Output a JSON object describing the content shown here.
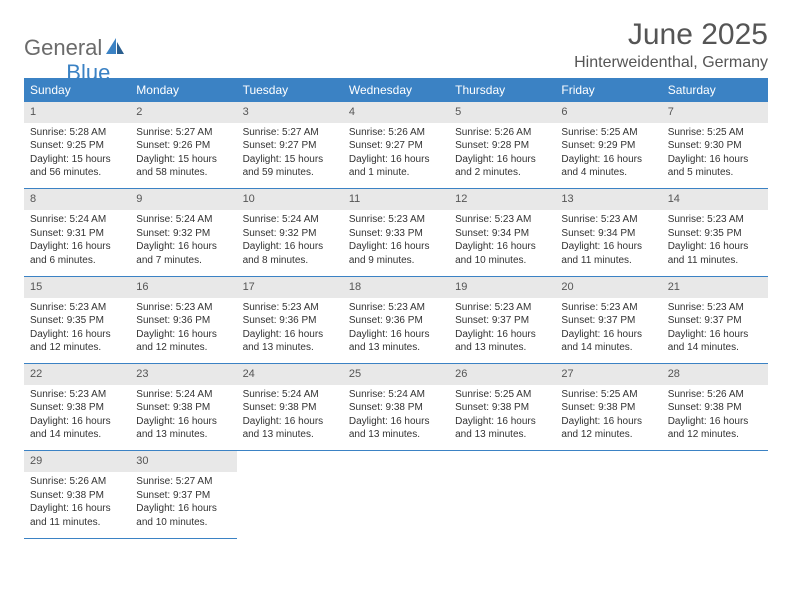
{
  "logo": {
    "word1": "General",
    "word2": "Blue"
  },
  "title": "June 2025",
  "subtitle": "Hinterweidenthal, Germany",
  "day_headers": [
    "Sunday",
    "Monday",
    "Tuesday",
    "Wednesday",
    "Thursday",
    "Friday",
    "Saturday"
  ],
  "colors": {
    "header_bg": "#3b82c4",
    "header_text": "#ffffff",
    "daynum_bg": "#e8e8e8",
    "text": "#333333",
    "rule": "#3b82c4"
  },
  "weeks": [
    {
      "nums": [
        "1",
        "2",
        "3",
        "4",
        "5",
        "6",
        "7"
      ],
      "details": [
        {
          "sunrise": "Sunrise: 5:28 AM",
          "sunset": "Sunset: 9:25 PM",
          "day1": "Daylight: 15 hours",
          "day2": "and 56 minutes."
        },
        {
          "sunrise": "Sunrise: 5:27 AM",
          "sunset": "Sunset: 9:26 PM",
          "day1": "Daylight: 15 hours",
          "day2": "and 58 minutes."
        },
        {
          "sunrise": "Sunrise: 5:27 AM",
          "sunset": "Sunset: 9:27 PM",
          "day1": "Daylight: 15 hours",
          "day2": "and 59 minutes."
        },
        {
          "sunrise": "Sunrise: 5:26 AM",
          "sunset": "Sunset: 9:27 PM",
          "day1": "Daylight: 16 hours",
          "day2": "and 1 minute."
        },
        {
          "sunrise": "Sunrise: 5:26 AM",
          "sunset": "Sunset: 9:28 PM",
          "day1": "Daylight: 16 hours",
          "day2": "and 2 minutes."
        },
        {
          "sunrise": "Sunrise: 5:25 AM",
          "sunset": "Sunset: 9:29 PM",
          "day1": "Daylight: 16 hours",
          "day2": "and 4 minutes."
        },
        {
          "sunrise": "Sunrise: 5:25 AM",
          "sunset": "Sunset: 9:30 PM",
          "day1": "Daylight: 16 hours",
          "day2": "and 5 minutes."
        }
      ]
    },
    {
      "nums": [
        "8",
        "9",
        "10",
        "11",
        "12",
        "13",
        "14"
      ],
      "details": [
        {
          "sunrise": "Sunrise: 5:24 AM",
          "sunset": "Sunset: 9:31 PM",
          "day1": "Daylight: 16 hours",
          "day2": "and 6 minutes."
        },
        {
          "sunrise": "Sunrise: 5:24 AM",
          "sunset": "Sunset: 9:32 PM",
          "day1": "Daylight: 16 hours",
          "day2": "and 7 minutes."
        },
        {
          "sunrise": "Sunrise: 5:24 AM",
          "sunset": "Sunset: 9:32 PM",
          "day1": "Daylight: 16 hours",
          "day2": "and 8 minutes."
        },
        {
          "sunrise": "Sunrise: 5:23 AM",
          "sunset": "Sunset: 9:33 PM",
          "day1": "Daylight: 16 hours",
          "day2": "and 9 minutes."
        },
        {
          "sunrise": "Sunrise: 5:23 AM",
          "sunset": "Sunset: 9:34 PM",
          "day1": "Daylight: 16 hours",
          "day2": "and 10 minutes."
        },
        {
          "sunrise": "Sunrise: 5:23 AM",
          "sunset": "Sunset: 9:34 PM",
          "day1": "Daylight: 16 hours",
          "day2": "and 11 minutes."
        },
        {
          "sunrise": "Sunrise: 5:23 AM",
          "sunset": "Sunset: 9:35 PM",
          "day1": "Daylight: 16 hours",
          "day2": "and 11 minutes."
        }
      ]
    },
    {
      "nums": [
        "15",
        "16",
        "17",
        "18",
        "19",
        "20",
        "21"
      ],
      "details": [
        {
          "sunrise": "Sunrise: 5:23 AM",
          "sunset": "Sunset: 9:35 PM",
          "day1": "Daylight: 16 hours",
          "day2": "and 12 minutes."
        },
        {
          "sunrise": "Sunrise: 5:23 AM",
          "sunset": "Sunset: 9:36 PM",
          "day1": "Daylight: 16 hours",
          "day2": "and 12 minutes."
        },
        {
          "sunrise": "Sunrise: 5:23 AM",
          "sunset": "Sunset: 9:36 PM",
          "day1": "Daylight: 16 hours",
          "day2": "and 13 minutes."
        },
        {
          "sunrise": "Sunrise: 5:23 AM",
          "sunset": "Sunset: 9:36 PM",
          "day1": "Daylight: 16 hours",
          "day2": "and 13 minutes."
        },
        {
          "sunrise": "Sunrise: 5:23 AM",
          "sunset": "Sunset: 9:37 PM",
          "day1": "Daylight: 16 hours",
          "day2": "and 13 minutes."
        },
        {
          "sunrise": "Sunrise: 5:23 AM",
          "sunset": "Sunset: 9:37 PM",
          "day1": "Daylight: 16 hours",
          "day2": "and 14 minutes."
        },
        {
          "sunrise": "Sunrise: 5:23 AM",
          "sunset": "Sunset: 9:37 PM",
          "day1": "Daylight: 16 hours",
          "day2": "and 14 minutes."
        }
      ]
    },
    {
      "nums": [
        "22",
        "23",
        "24",
        "25",
        "26",
        "27",
        "28"
      ],
      "details": [
        {
          "sunrise": "Sunrise: 5:23 AM",
          "sunset": "Sunset: 9:38 PM",
          "day1": "Daylight: 16 hours",
          "day2": "and 14 minutes."
        },
        {
          "sunrise": "Sunrise: 5:24 AM",
          "sunset": "Sunset: 9:38 PM",
          "day1": "Daylight: 16 hours",
          "day2": "and 13 minutes."
        },
        {
          "sunrise": "Sunrise: 5:24 AM",
          "sunset": "Sunset: 9:38 PM",
          "day1": "Daylight: 16 hours",
          "day2": "and 13 minutes."
        },
        {
          "sunrise": "Sunrise: 5:24 AM",
          "sunset": "Sunset: 9:38 PM",
          "day1": "Daylight: 16 hours",
          "day2": "and 13 minutes."
        },
        {
          "sunrise": "Sunrise: 5:25 AM",
          "sunset": "Sunset: 9:38 PM",
          "day1": "Daylight: 16 hours",
          "day2": "and 13 minutes."
        },
        {
          "sunrise": "Sunrise: 5:25 AM",
          "sunset": "Sunset: 9:38 PM",
          "day1": "Daylight: 16 hours",
          "day2": "and 12 minutes."
        },
        {
          "sunrise": "Sunrise: 5:26 AM",
          "sunset": "Sunset: 9:38 PM",
          "day1": "Daylight: 16 hours",
          "day2": "and 12 minutes."
        }
      ]
    },
    {
      "nums": [
        "29",
        "30",
        "",
        "",
        "",
        "",
        ""
      ],
      "details": [
        {
          "sunrise": "Sunrise: 5:26 AM",
          "sunset": "Sunset: 9:38 PM",
          "day1": "Daylight: 16 hours",
          "day2": "and 11 minutes."
        },
        {
          "sunrise": "Sunrise: 5:27 AM",
          "sunset": "Sunset: 9:37 PM",
          "day1": "Daylight: 16 hours",
          "day2": "and 10 minutes."
        },
        null,
        null,
        null,
        null,
        null
      ]
    }
  ]
}
